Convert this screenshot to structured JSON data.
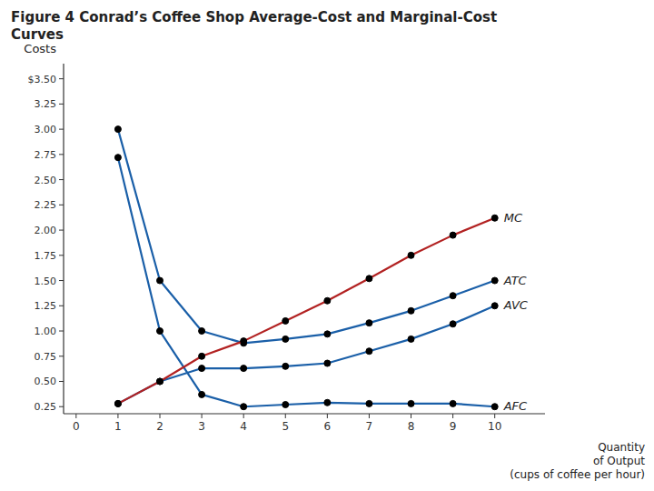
{
  "chart_data": {
    "type": "line",
    "title": "Figure 4 Conrad’s Coffee Shop Average-Cost and Marginal-Cost\nCurves",
    "x_label": "Quantity\nof Output\n(cups of coffee per hour)",
    "y_label": "Costs",
    "x": [
      1,
      2,
      3,
      4,
      5,
      6,
      7,
      8,
      9,
      10
    ],
    "series": [
      {
        "name": "ATC",
        "color": "#1a5fa8",
        "values": [
          3.0,
          1.5,
          1.0,
          0.88,
          0.92,
          0.97,
          1.08,
          1.2,
          1.35,
          1.5
        ]
      },
      {
        "name": "AVC",
        "color": "#1a5fa8",
        "values": [
          0.28,
          0.5,
          0.63,
          0.63,
          0.65,
          0.68,
          0.8,
          0.92,
          1.07,
          1.25
        ]
      },
      {
        "name": "AFC",
        "color": "#1a5fa8",
        "values": [
          2.72,
          1.0,
          0.37,
          0.25,
          0.27,
          0.29,
          0.28,
          0.28,
          0.28,
          0.25
        ]
      },
      {
        "name": "MC",
        "color": "#b22222",
        "values": [
          0.28,
          0.5,
          0.75,
          0.9,
          1.1,
          1.3,
          1.52,
          1.75,
          1.95,
          2.12
        ]
      }
    ],
    "marker": "circle",
    "xlim": [
      -0.3,
      11.2
    ],
    "xticks": [
      0,
      1,
      2,
      3,
      4,
      5,
      6,
      7,
      8,
      9,
      10
    ],
    "ylim": [
      0.18,
      3.65
    ],
    "yticks": [
      0.25,
      {
        "value": 0.5,
        "label": "0.50"
      },
      0.75,
      {
        "value": 1.0,
        "label": "1.00"
      },
      1.25,
      {
        "value": 1.5,
        "label": "1.50"
      },
      1.75,
      {
        "value": 2.0,
        "label": "2.00"
      },
      2.25,
      {
        "value": 2.5,
        "label": "2.50"
      },
      2.75,
      {
        "value": 3.0,
        "label": "3.00"
      },
      3.25,
      {
        "value": 3.5,
        "label": "$3.50"
      }
    ],
    "grid": false
  }
}
